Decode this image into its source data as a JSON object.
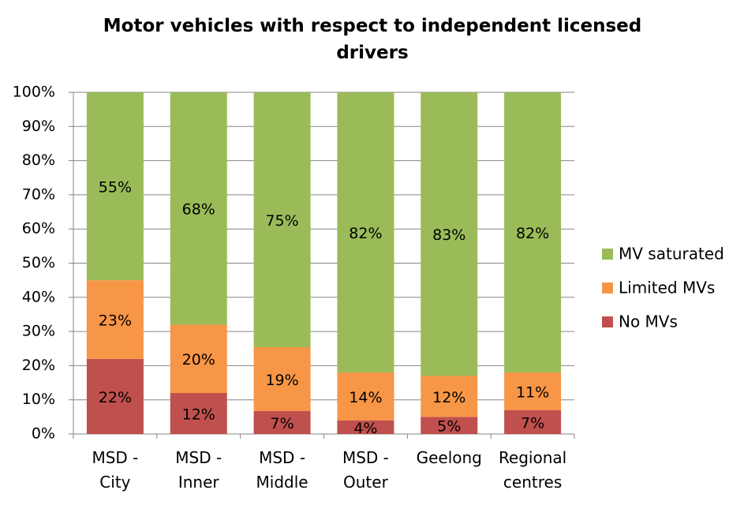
{
  "chart_data": {
    "type": "stacked_bar",
    "title": "Motor vehicles with respect to independent licensed drivers",
    "categories": [
      "MSD - City",
      "MSD - Inner",
      "MSD - Middle",
      "MSD - Outer",
      "Geelong",
      "Regional centres"
    ],
    "series": [
      {
        "name": "No MVs",
        "color": "#c0504d",
        "values": [
          22,
          12,
          6.7,
          4,
          5,
          7
        ],
        "value_labels": [
          "22%",
          "12%",
          "7%",
          "4%",
          "5%",
          "7%"
        ]
      },
      {
        "name": "Limited MVs",
        "color": "#f79646",
        "values": [
          23,
          20,
          18.7,
          14,
          12,
          11
        ],
        "value_labels": [
          "23%",
          "20%",
          "19%",
          "14%",
          "12%",
          "11%"
        ]
      },
      {
        "name": "MV saturated",
        "color": "#9bbb59",
        "values": [
          55,
          68,
          74.6,
          82,
          83,
          82
        ],
        "value_labels": [
          "55%",
          "68%",
          "75%",
          "82%",
          "83%",
          "82%"
        ]
      }
    ],
    "ylim": [
      0,
      100
    ],
    "yticks": [
      {
        "value": 0,
        "label": "0%"
      },
      {
        "value": 10,
        "label": "10%"
      },
      {
        "value": 20,
        "label": "20%"
      },
      {
        "value": 30,
        "label": "30%"
      },
      {
        "value": 40,
        "label": "40%"
      },
      {
        "value": 50,
        "label": "50%"
      },
      {
        "value": 60,
        "label": "60%"
      },
      {
        "value": 70,
        "label": "70%"
      },
      {
        "value": 80,
        "label": "80%"
      },
      {
        "value": 90,
        "label": "90%"
      },
      {
        "value": 100,
        "label": "100%"
      }
    ],
    "grid": true,
    "legend": "right"
  }
}
